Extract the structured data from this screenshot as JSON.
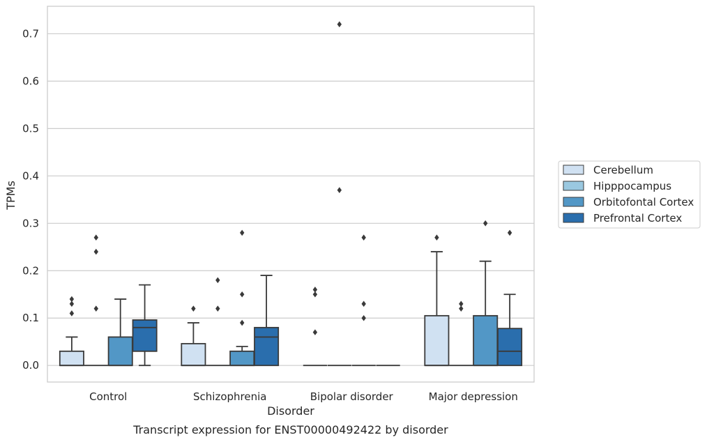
{
  "chart_data": {
    "type": "box",
    "caption": "Transcript expression for ENST00000492422 by disorder",
    "xlabel": "Disorder",
    "ylabel": "TPMs",
    "ylim": [
      -0.035,
      0.758
    ],
    "yticks": [
      0.0,
      0.1,
      0.2,
      0.3,
      0.4,
      0.5,
      0.6,
      0.7
    ],
    "ytick_labels": [
      "0.0",
      "0.1",
      "0.2",
      "0.3",
      "0.4",
      "0.5",
      "0.6",
      "0.7"
    ],
    "grid": true,
    "legend_position": "right",
    "categories": [
      "Control",
      "Schizophrenia",
      "Bipolar disorder",
      "Major depression"
    ],
    "series": [
      {
        "name": "Cerebellum",
        "color": "#d0e1f2",
        "boxes": [
          {
            "whisker_low": 0.0,
            "q1": 0.0,
            "median": 0.0,
            "q3": 0.03,
            "whisker_high": 0.06,
            "outliers": [
              0.14,
              0.13,
              0.11
            ]
          },
          {
            "whisker_low": 0.0,
            "q1": 0.0,
            "median": 0.0,
            "q3": 0.046,
            "whisker_high": 0.09,
            "outliers": [
              0.12
            ]
          },
          {
            "whisker_low": 0.0,
            "q1": 0.0,
            "median": 0.0,
            "q3": 0.0,
            "whisker_high": 0.0,
            "outliers": [
              0.16,
              0.15,
              0.07
            ]
          },
          {
            "whisker_low": 0.0,
            "q1": 0.0,
            "median": 0.0,
            "q3": 0.105,
            "whisker_high": 0.24,
            "outliers": [
              0.27
            ]
          }
        ]
      },
      {
        "name": "Hipppocampus",
        "color": "#9ac8e0",
        "boxes": [
          {
            "whisker_low": 0.0,
            "q1": 0.0,
            "median": 0.0,
            "q3": 0.0,
            "whisker_high": 0.0,
            "outliers": [
              0.27,
              0.24,
              0.12
            ]
          },
          {
            "whisker_low": 0.0,
            "q1": 0.0,
            "median": 0.0,
            "q3": 0.0,
            "whisker_high": 0.0,
            "outliers": [
              0.18,
              0.12
            ]
          },
          {
            "whisker_low": 0.0,
            "q1": 0.0,
            "median": 0.0,
            "q3": 0.0,
            "whisker_high": 0.0,
            "outliers": [
              0.72,
              0.37
            ]
          },
          {
            "whisker_low": 0.0,
            "q1": 0.0,
            "median": 0.0,
            "q3": 0.0,
            "whisker_high": 0.0,
            "outliers": [
              0.13,
              0.12
            ]
          }
        ]
      },
      {
        "name": "Orbitofontal Cortex",
        "color": "#5297c6",
        "boxes": [
          {
            "whisker_low": 0.0,
            "q1": 0.0,
            "median": 0.0,
            "q3": 0.06,
            "whisker_high": 0.14,
            "outliers": []
          },
          {
            "whisker_low": 0.0,
            "q1": 0.0,
            "median": 0.0,
            "q3": 0.03,
            "whisker_high": 0.04,
            "outliers": [
              0.28,
              0.15,
              0.09
            ]
          },
          {
            "whisker_low": 0.0,
            "q1": 0.0,
            "median": 0.0,
            "q3": 0.0,
            "whisker_high": 0.0,
            "outliers": [
              0.27,
              0.13,
              0.1
            ]
          },
          {
            "whisker_low": 0.0,
            "q1": 0.0,
            "median": 0.0,
            "q3": 0.105,
            "whisker_high": 0.22,
            "outliers": [
              0.3
            ]
          }
        ]
      },
      {
        "name": "Prefrontal Cortex",
        "color": "#2a6ead",
        "boxes": [
          {
            "whisker_low": 0.0,
            "q1": 0.03,
            "median": 0.08,
            "q3": 0.096,
            "whisker_high": 0.17,
            "outliers": []
          },
          {
            "whisker_low": 0.0,
            "q1": 0.0,
            "median": 0.06,
            "q3": 0.08,
            "whisker_high": 0.19,
            "outliers": []
          },
          {
            "whisker_low": 0.0,
            "q1": 0.0,
            "median": 0.0,
            "q3": 0.0,
            "whisker_high": 0.0,
            "outliers": []
          },
          {
            "whisker_low": 0.0,
            "q1": 0.0,
            "median": 0.03,
            "q3": 0.078,
            "whisker_high": 0.15,
            "outliers": [
              0.28
            ]
          }
        ]
      }
    ]
  }
}
